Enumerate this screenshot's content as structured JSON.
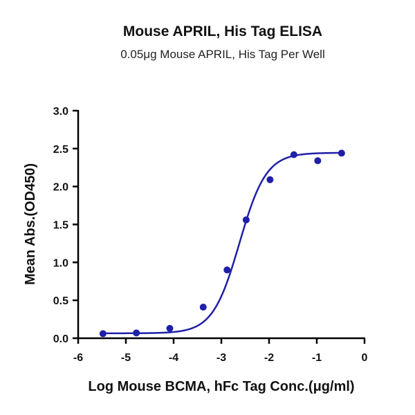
{
  "chart_data": {
    "type": "scatter",
    "title": "Mouse APRIL, His Tag ELISA",
    "subtitle": "0.05μg Mouse APRIL, His Tag Per Well",
    "xlabel": "Log Mouse BCMA, hFc Tag Conc.(μg/ml)",
    "ylabel": "Mean Abs.(OD450)",
    "xlim": [
      -6,
      0
    ],
    "ylim": [
      0,
      3.0
    ],
    "xticks": [
      -6,
      -5,
      -4,
      -3,
      -2,
      -1,
      0
    ],
    "xtick_labels": [
      "-6",
      "-5",
      "-4",
      "-3",
      "-2",
      "-1",
      "0"
    ],
    "yticks": [
      0,
      0.5,
      1.0,
      1.5,
      2.0,
      2.5,
      3.0
    ],
    "ytick_labels": [
      "0.0",
      "0.5",
      "1.0",
      "1.5",
      "2.0",
      "2.5",
      "3.0"
    ],
    "grid": false,
    "color": "#1f1fa8",
    "series": [
      {
        "x": [
          -5.48,
          -4.78,
          -4.08,
          -3.38,
          -2.88,
          -2.48,
          -1.98,
          -1.48,
          -0.98,
          -0.48
        ],
        "y": [
          0.06,
          0.07,
          0.13,
          0.41,
          0.9,
          1.56,
          2.09,
          2.42,
          2.34,
          2.44
        ]
      }
    ],
    "fit": {
      "model": "4PL",
      "bottom": 0.065,
      "top": 2.445,
      "log_ec50": -2.62,
      "hill_slope": 1.55
    }
  }
}
